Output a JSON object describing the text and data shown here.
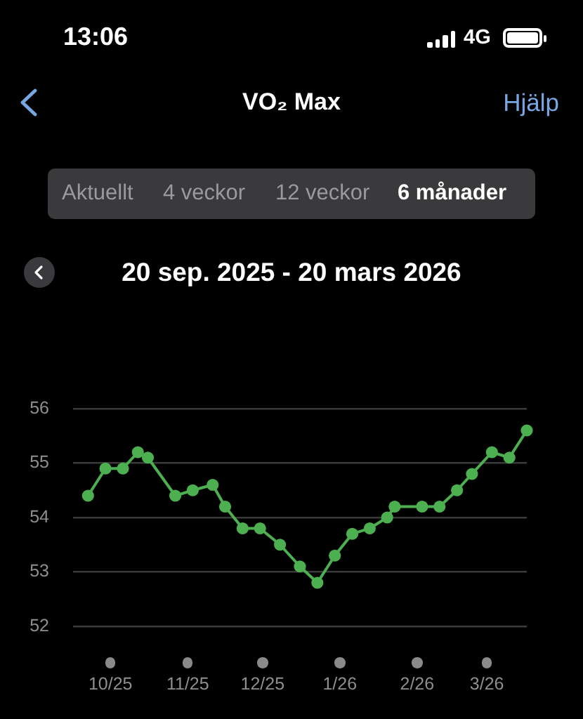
{
  "chart_data": {
    "type": "line",
    "title": "VO₂ Max",
    "subtitle": "20 sep. 2025 - 20 mars 2026",
    "annotations": [
      "13:06",
      "4G",
      "Hjälp",
      "Aktuellt",
      "4 veckor",
      "12 veckor",
      "6 månader"
    ],
    "x": [
      "2025-09-22",
      "2025-09-29",
      "2025-10-06",
      "2025-10-12",
      "2025-10-16",
      "2025-10-27",
      "2025-11-03",
      "2025-11-11",
      "2025-11-16",
      "2025-11-23",
      "2025-11-30",
      "2025-12-08",
      "2025-12-16",
      "2025-12-23",
      "2025-12-30",
      "2026-01-06",
      "2026-01-13",
      "2026-01-20",
      "2026-01-23",
      "2026-02-03",
      "2026-02-10",
      "2026-02-17",
      "2026-02-23",
      "2026-03-03",
      "2026-03-10",
      "2026-03-17"
    ],
    "values": [
      54.4,
      54.9,
      54.9,
      55.2,
      55.1,
      54.4,
      54.5,
      54.6,
      54.2,
      53.8,
      53.8,
      53.5,
      53.1,
      52.8,
      53.3,
      53.7,
      53.8,
      54.0,
      54.2,
      54.2,
      54.2,
      54.5,
      54.8,
      55.2,
      55.1,
      55.6
    ],
    "color": "#4caf50",
    "xlim": [
      "2025-09-16",
      "2026-03-17"
    ],
    "xticks": [
      {
        "value": "2025-10",
        "label": "10/25"
      },
      {
        "value": "2025-11",
        "label": "11/25"
      },
      {
        "value": "2025-12",
        "label": "12/25"
      },
      {
        "value": "2026-01",
        "label": "1/26"
      },
      {
        "value": "2026-02",
        "label": "2/26"
      },
      {
        "value": "2026-03",
        "label": "3/26"
      }
    ],
    "ylim": [
      52,
      56
    ],
    "yticks": [
      52,
      53,
      54,
      55,
      56
    ],
    "grid": "y",
    "legend": false,
    "marker": "circle",
    "line_style": "solid"
  }
}
